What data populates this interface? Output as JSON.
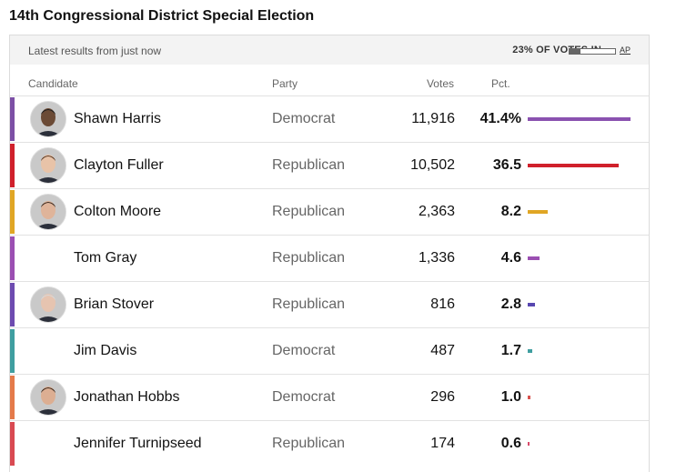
{
  "title": "14th Congressional District Special Election",
  "header": {
    "latest": "Latest results from just now",
    "votes_in": "23% OF VOTES IN",
    "reporting_fraction": 0.23,
    "ap": "AP"
  },
  "columns": {
    "candidate": "Candidate",
    "party": "Party",
    "votes": "Votes",
    "pct": "Pct."
  },
  "colors": {
    "democrat": "#7c4fa5",
    "republican": "#d0202b"
  },
  "candidates": [
    {
      "name": "Shawn Harris",
      "party": "Democrat",
      "votes": "11,916",
      "pct": "41.4%",
      "pct_value": 41.4,
      "stripe": "#7c4fa5",
      "bar": "#8a52b0",
      "photo": true,
      "skin": "#6b4a35",
      "hair": "#1e1e1e"
    },
    {
      "name": "Clayton Fuller",
      "party": "Republican",
      "votes": "10,502",
      "pct": "36.5",
      "pct_value": 36.5,
      "stripe": "#d0202b",
      "bar": "#d0202b",
      "photo": true,
      "skin": "#e8c3a8",
      "hair": "#5a3a25"
    },
    {
      "name": "Colton Moore",
      "party": "Republican",
      "votes": "2,363",
      "pct": "8.2",
      "pct_value": 8.2,
      "stripe": "#e0a624",
      "bar": "#e0a624",
      "photo": true,
      "skin": "#dfb49a",
      "hair": "#3a2a20"
    },
    {
      "name": "Tom Gray",
      "party": "Republican",
      "votes": "1,336",
      "pct": "4.6",
      "pct_value": 4.6,
      "stripe": "#9b4fb2",
      "bar": "#9b4fb2",
      "photo": false
    },
    {
      "name": "Brian Stover",
      "party": "Republican",
      "votes": "816",
      "pct": "2.8",
      "pct_value": 2.8,
      "stripe": "#6d4bb0",
      "bar": "#5847b0",
      "photo": true,
      "skin": "#e6c4b0",
      "hair": "#d8d8d8"
    },
    {
      "name": "Jim Davis",
      "party": "Democrat",
      "votes": "487",
      "pct": "1.7",
      "pct_value": 1.7,
      "stripe": "#3f9ea0",
      "bar": "#3f9ea0",
      "photo": false
    },
    {
      "name": "Jonathan Hobbs",
      "party": "Democrat",
      "votes": "296",
      "pct": "1.0",
      "pct_value": 1.0,
      "stripe": "#e47a4a",
      "bar": "#d9534f",
      "photo": true,
      "skin": "#dcae92",
      "hair": "#3b2a1e"
    },
    {
      "name": "Jennifer Turnipseed",
      "party": "Republican",
      "votes": "174",
      "pct": "0.6",
      "pct_value": 0.6,
      "stripe": "#d94a52",
      "bar": "#d94a6a",
      "photo": false
    }
  ]
}
